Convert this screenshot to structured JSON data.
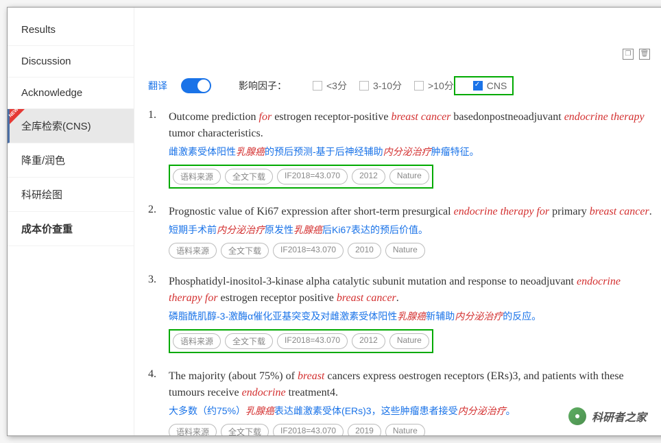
{
  "sidebar": {
    "items": [
      {
        "label": "Results",
        "active": false
      },
      {
        "label": "Discussion",
        "active": false
      },
      {
        "label": "Acknowledge",
        "active": false
      },
      {
        "label": "全库检索(CNS)",
        "active": true,
        "newBadge": true
      },
      {
        "label": "降重/润色",
        "active": false
      },
      {
        "label": "科研绘图",
        "active": false
      },
      {
        "label": "成本价查重",
        "active": false,
        "bold": true
      }
    ]
  },
  "filters": {
    "translateLabel": "翻译",
    "translateOn": true,
    "factorLabel": "影响因子：",
    "options": [
      {
        "label": "<3分",
        "checked": false
      },
      {
        "label": "3-10分",
        "checked": false
      },
      {
        "label": ">10分",
        "checked": false
      },
      {
        "label": "CNS",
        "checked": true,
        "highlighted": true
      }
    ]
  },
  "results": [
    {
      "num": "1.",
      "title_parts": [
        {
          "t": "Outcome prediction "
        },
        {
          "t": "for",
          "s": "red"
        },
        {
          "t": " estrogen receptor-positive "
        },
        {
          "t": "breast cancer",
          "s": "red"
        },
        {
          "t": " basedonpostneoadjuvant "
        },
        {
          "t": "endocrine therapy",
          "s": "red"
        },
        {
          "t": " tumor characteristics."
        }
      ],
      "translation_parts": [
        {
          "t": "雌激素受体阳性"
        },
        {
          "t": "乳腺癌",
          "s": "red"
        },
        {
          "t": "的预后预测-基于后神经辅助"
        },
        {
          "t": "内分泌治疗",
          "s": "red"
        },
        {
          "t": "肿瘤特征。"
        }
      ],
      "tags": [
        "语料来源",
        "全文下载",
        "IF2018=43.070",
        "2012",
        "Nature"
      ],
      "tagsHighlighted": true
    },
    {
      "num": "2.",
      "title_parts": [
        {
          "t": "Prognostic value of Ki67 expression after short-term presurgical "
        },
        {
          "t": "endocrine therapy for",
          "s": "red"
        },
        {
          "t": " primary "
        },
        {
          "t": "breast cancer",
          "s": "red"
        },
        {
          "t": "."
        }
      ],
      "translation_parts": [
        {
          "t": "短期手术前"
        },
        {
          "t": "内分泌治疗",
          "s": "red"
        },
        {
          "t": "原发性"
        },
        {
          "t": "乳腺癌",
          "s": "red"
        },
        {
          "t": "后Ki67表达的预后价值。"
        }
      ],
      "tags": [
        "语料来源",
        "全文下载",
        "IF2018=43.070",
        "2010",
        "Nature"
      ],
      "tagsHighlighted": false
    },
    {
      "num": "3.",
      "title_parts": [
        {
          "t": "Phosphatidyl-inositol-3-kinase alpha catalytic subunit mutation and response to neoadjuvant "
        },
        {
          "t": "endocrine therapy for",
          "s": "red"
        },
        {
          "t": " estrogen receptor positive "
        },
        {
          "t": "breast cancer",
          "s": "red"
        },
        {
          "t": "."
        }
      ],
      "translation_parts": [
        {
          "t": "磷脂酰肌醇-3-激酶α催化亚基突变及对雌激素受体阳性"
        },
        {
          "t": "乳腺癌",
          "s": "red"
        },
        {
          "t": "新辅助"
        },
        {
          "t": "内分泌治疗",
          "s": "red"
        },
        {
          "t": "的反应。"
        }
      ],
      "tags": [
        "语料来源",
        "全文下载",
        "IF2018=43.070",
        "2012",
        "Nature"
      ],
      "tagsHighlighted": true
    },
    {
      "num": "4.",
      "title_parts": [
        {
          "t": "The majority (about 75%) of "
        },
        {
          "t": "breast",
          "s": "red"
        },
        {
          "t": " cancers express oestrogen receptors (ERs)3, and patients with these tumours receive "
        },
        {
          "t": "endocrine",
          "s": "red"
        },
        {
          "t": " treatment4."
        }
      ],
      "translation_parts": [
        {
          "t": "大多数（约75%）"
        },
        {
          "t": "乳腺癌",
          "s": "red"
        },
        {
          "t": "表达雌激素受体(ERs)3，这些肿瘤患者接受"
        },
        {
          "t": "内分泌治疗",
          "s": "red"
        },
        {
          "t": "。"
        }
      ],
      "tags": [
        "语料来源",
        "全文下载",
        "IF2018=43.070",
        "2019",
        "Nature"
      ],
      "tagsHighlighted": false
    }
  ],
  "watermark": "科研者之家",
  "colors": {
    "accent_blue": "#1a73e8",
    "highlight_green": "#00aa00",
    "emphasis_red": "#d32f2f",
    "sidebar_active_bg": "#e8e8e8",
    "sidebar_active_border": "#4a6fa5",
    "new_badge": "#e53935",
    "tag_border": "#bbbbbb",
    "tag_text": "#888888"
  }
}
